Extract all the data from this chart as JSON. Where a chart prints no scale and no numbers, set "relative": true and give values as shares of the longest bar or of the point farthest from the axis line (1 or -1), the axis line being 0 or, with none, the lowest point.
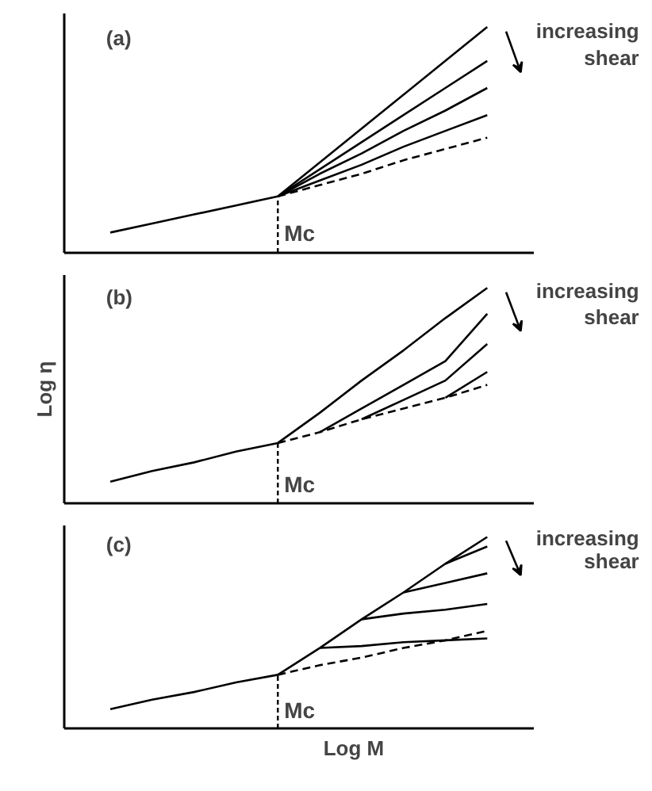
{
  "chart_data": [
    {
      "type": "line",
      "relative": true,
      "tick_labels": false,
      "categories": [
        null,
        null,
        null,
        null,
        null,
        null,
        null,
        null,
        null,
        null
      ],
      "annotations": [
        "(a)",
        "increasing shear",
        "Mc"
      ],
      "series": [
        {
          "color": "#000000",
          "values": [
            0.09,
            0.13,
            0.17,
            0.21,
            0.25,
            0.4,
            0.55,
            0.7,
            0.85,
            1.0
          ]
        },
        {
          "color": "#000000",
          "values": [
            null,
            null,
            null,
            null,
            0.25,
            0.37,
            0.49,
            0.61,
            0.73,
            0.85
          ]
        },
        {
          "color": "#000000",
          "values": [
            null,
            null,
            null,
            null,
            0.25,
            0.35,
            0.44,
            0.54,
            0.63,
            0.73
          ]
        },
        {
          "color": "#000000",
          "values": [
            null,
            null,
            null,
            null,
            0.25,
            0.32,
            0.39,
            0.47,
            0.54,
            0.61
          ]
        },
        {
          "color": "#000000",
          "line_style": "dashed",
          "values": [
            null,
            null,
            null,
            null,
            0.25,
            0.3,
            0.35,
            0.41,
            0.46,
            0.51
          ]
        }
      ]
    },
    {
      "type": "line",
      "relative": true,
      "tick_labels": false,
      "ylabel": "Log η",
      "categories": [
        null,
        null,
        null,
        null,
        null,
        null,
        null,
        null,
        null,
        null
      ],
      "annotations": [
        "(b)",
        "increasing shear",
        "Mc"
      ],
      "series": [
        {
          "color": "#000000",
          "values": [
            0.1,
            0.15,
            0.19,
            0.24,
            0.28,
            0.42,
            0.57,
            0.71,
            0.86,
            1.0
          ]
        },
        {
          "color": "#000000",
          "values": [
            null,
            null,
            null,
            null,
            null,
            0.33,
            0.44,
            0.55,
            0.66,
            0.88
          ]
        },
        {
          "color": "#000000",
          "values": [
            null,
            null,
            null,
            null,
            null,
            null,
            0.39,
            0.48,
            0.57,
            0.74
          ]
        },
        {
          "color": "#000000",
          "values": [
            null,
            null,
            null,
            null,
            null,
            null,
            null,
            null,
            0.49,
            0.61
          ]
        },
        {
          "color": "#000000",
          "line_style": "dashed",
          "values": [
            null,
            null,
            null,
            null,
            0.28,
            0.33,
            0.39,
            0.44,
            0.49,
            0.55
          ]
        }
      ]
    },
    {
      "type": "line",
      "relative": true,
      "tick_labels": false,
      "xlabel": "Log M",
      "categories": [
        null,
        null,
        null,
        null,
        null,
        null,
        null,
        null,
        null,
        null
      ],
      "annotations": [
        "(c)",
        "increasing shear",
        "Mc"
      ],
      "series": [
        {
          "color": "#000000",
          "values": [
            0.1,
            0.15,
            0.19,
            0.24,
            0.28,
            0.42,
            0.57,
            0.71,
            0.86,
            1.0
          ]
        },
        {
          "color": "#000000",
          "values": [
            null,
            null,
            null,
            null,
            null,
            null,
            null,
            null,
            0.86,
            0.95
          ]
        },
        {
          "color": "#000000",
          "values": [
            null,
            null,
            null,
            null,
            null,
            null,
            null,
            0.71,
            0.76,
            0.81
          ]
        },
        {
          "color": "#000000",
          "values": [
            null,
            null,
            null,
            null,
            null,
            null,
            0.57,
            0.6,
            0.62,
            0.65
          ]
        },
        {
          "color": "#000000",
          "values": [
            null,
            null,
            null,
            null,
            null,
            0.42,
            0.43,
            0.45,
            0.46,
            0.47
          ]
        },
        {
          "color": "#000000",
          "line_style": "dashed",
          "values": [
            null,
            null,
            null,
            null,
            0.28,
            0.33,
            0.37,
            0.42,
            0.46,
            0.51
          ]
        }
      ]
    }
  ]
}
